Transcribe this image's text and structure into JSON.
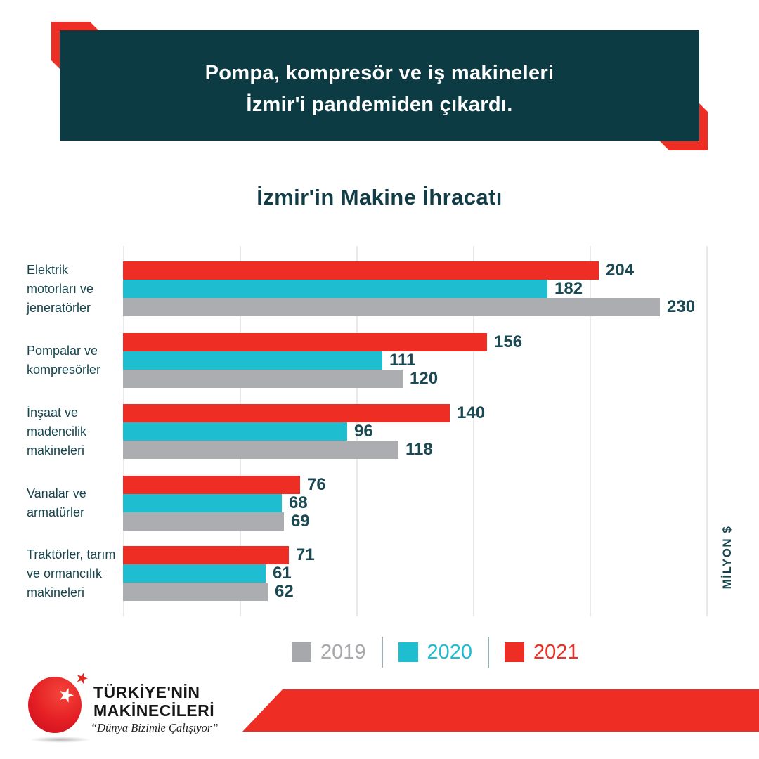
{
  "header": {
    "line1": "Pompa, kompresör ve iş makineleri",
    "line2": "İzmir'i pandemiden çıkardı."
  },
  "chart_data": {
    "type": "bar",
    "orientation": "horizontal",
    "title": "İzmir'in Makine İhracatı",
    "unit_label": "MİLYON $",
    "categories": [
      "Elektrik\nmotorları ve\njeneratörler",
      "Pompalar ve\nkompresörler",
      "İnşaat ve\nmadencilik\nmakineleri",
      "Vanalar ve\narmatürler",
      "Traktörler, tarım\nve ormancılık\nmakineleri"
    ],
    "series": [
      {
        "name": "2021",
        "color": "#ee2e24",
        "values": [
          204,
          156,
          140,
          76,
          71
        ]
      },
      {
        "name": "2020",
        "color": "#1fbdd0",
        "values": [
          182,
          111,
          96,
          68,
          61
        ]
      },
      {
        "name": "2019",
        "color": "#abadb0",
        "values": [
          230,
          120,
          118,
          69,
          62
        ]
      }
    ],
    "xlim": [
      0,
      250
    ],
    "gridline_step": 50,
    "grid": true,
    "value_labels": true,
    "legend_position": "bottom"
  },
  "legend": {
    "items": [
      {
        "label": "2019",
        "color": "#a6a8ab"
      },
      {
        "label": "2020",
        "color": "#1fbdd0"
      },
      {
        "label": "2021",
        "color": "#ee2e24"
      }
    ]
  },
  "footer": {
    "logo": {
      "line1": "TÜRKİYE'NİN",
      "line2": "MAKİNECİLERİ",
      "tagline": "“Dünya Bizimle Çalışıyor”"
    }
  },
  "colors": {
    "header_bg": "#0c3b44",
    "accent_red": "#ee2e24",
    "cyan": "#1fbdd0",
    "gray": "#abadb0",
    "text_teal": "#17454e",
    "gridline": "#e9e9e9",
    "legend_divider": "#9bb0b6"
  }
}
